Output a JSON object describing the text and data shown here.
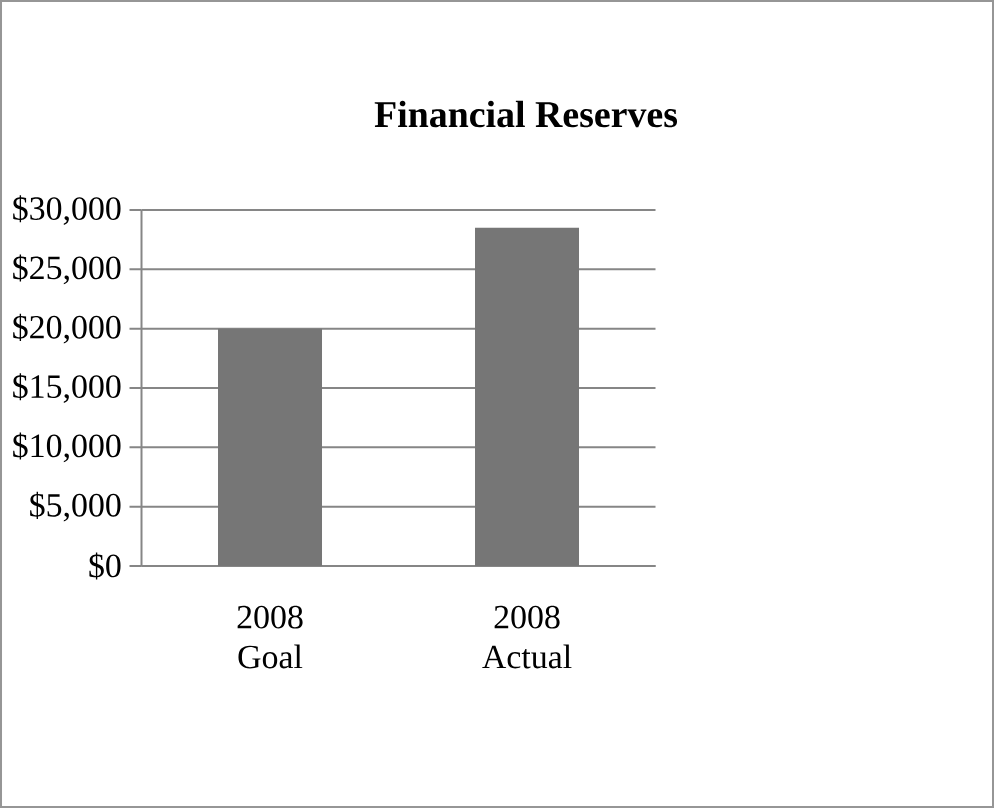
{
  "chart_data": {
    "type": "bar",
    "title": "Financial Reserves",
    "categories": [
      "2008 Goal",
      "2008 Actual"
    ],
    "values": [
      20000,
      28500
    ],
    "color": "#767676",
    "ylim": [
      0,
      30000
    ],
    "yticks": [
      {
        "value": 0,
        "label": "$0"
      },
      {
        "value": 5000,
        "label": "$5,000"
      },
      {
        "value": 10000,
        "label": "$10,000"
      },
      {
        "value": 15000,
        "label": "$15,000"
      },
      {
        "value": 20000,
        "label": "$20,000"
      },
      {
        "value": 25000,
        "label": "$25,000"
      },
      {
        "value": 30000,
        "label": "$30,000"
      }
    ],
    "grid": "y"
  }
}
